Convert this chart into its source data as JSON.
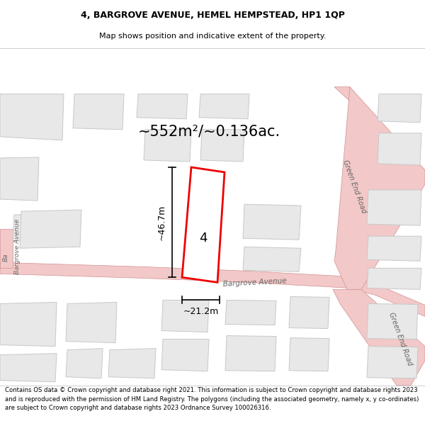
{
  "title": "4, BARGROVE AVENUE, HEMEL HEMPSTEAD, HP1 1QP",
  "subtitle": "Map shows position and indicative extent of the property.",
  "area_label": "~552m²/~0.136ac.",
  "width_label": "~21.2m",
  "height_label": "~46.7m",
  "number_label": "4",
  "road_label_bargrove": "Bargrove Avenue",
  "road_label_green_end_top": "Green End Road",
  "road_label_green_end_bottom": "Green End Road",
  "road_label_left": "Bargrove Avenue",
  "footer_text": "Contains OS data © Crown copyright and database right 2021. This information is subject to Crown copyright and database rights 2023 and is reproduced with the permission of HM Land Registry. The polygons (including the associated geometry, namely x, y co-ordinates) are subject to Crown copyright and database rights 2023 Ordnance Survey 100026316.",
  "bg_color": "#ffffff",
  "map_bg": "#ffffff",
  "road_fill": "#f2c8c8",
  "road_edge": "#d49090",
  "building_fill": "#e8e8e8",
  "building_edge": "#c8c8c8",
  "highlight_color": "#ee0000",
  "text_color": "#000000",
  "road_text_color": "#666666"
}
